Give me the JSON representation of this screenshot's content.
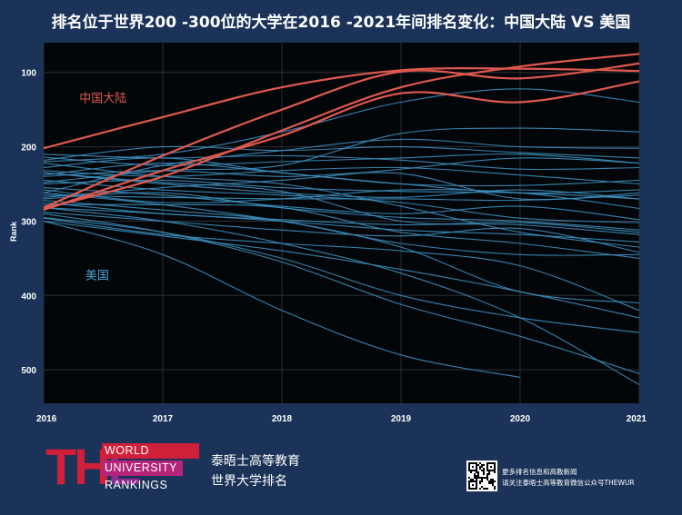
{
  "title": "排名位于世界200 -300位的大学在2016 -2021年间排名变化：中国大陆 VS 美国",
  "footer": {
    "logo_letters": "THE",
    "logo_lines": [
      "WORLD",
      "UNIVERSITY",
      "RANKINGS"
    ],
    "brand_line1": "泰晤士高等教育",
    "brand_line2": "世界大学排名",
    "qr_text_line1": "更多排名信息和高教新闻",
    "qr_text_line2": "请关注泰晤士高等教育微信公众号THEWUR"
  },
  "colors": {
    "background": "#1b3358",
    "plot_background": "#030609",
    "china": "#e0594e",
    "usa": "#3d8fbf"
  },
  "chart_data": {
    "type": "line",
    "ylabel": "Rank",
    "xlabel": "",
    "y_inverted": true,
    "ylim": [
      545,
      60
    ],
    "yticks": [
      100,
      200,
      300,
      400,
      500
    ],
    "x": [
      2016,
      2017,
      2018,
      2019,
      2020,
      2021
    ],
    "grid": true,
    "annotations": [
      {
        "text": "中国大陆",
        "group": "china",
        "x": 2016.3,
        "y": 140
      },
      {
        "text": "美国",
        "group": "usa",
        "x": 2016.35,
        "y": 378
      }
    ],
    "series": [
      {
        "group": "china",
        "values": [
          202,
          160,
          120,
          97,
          95,
          98
        ]
      },
      {
        "group": "china",
        "values": [
          282,
          212,
          150,
          99,
          108,
          88
        ]
      },
      {
        "group": "china",
        "values": [
          285,
          232,
          185,
          128,
          140,
          112
        ]
      },
      {
        "group": "china",
        "values": [
          283,
          240,
          178,
          120,
          92,
          75
        ]
      },
      {
        "group": "usa",
        "values": [
          232,
          240,
          232,
          228,
          238,
          250
        ]
      },
      {
        "group": "usa",
        "values": [
          250,
          245,
          255,
          260,
          262,
          270
        ]
      },
      {
        "group": "usa",
        "values": [
          268,
          255,
          245,
          230,
          215,
          222
        ]
      },
      {
        "group": "usa",
        "values": [
          270,
          262,
          282,
          295,
          300,
          312
        ]
      },
      {
        "group": "usa",
        "values": [
          282,
          290,
          300,
          312,
          318,
          328
        ]
      },
      {
        "group": "usa",
        "values": [
          300,
          320,
          340,
          365,
          395,
          430
        ]
      },
      {
        "group": "usa",
        "values": [
          295,
          315,
          350,
          400,
          430,
          450
        ]
      },
      {
        "group": "usa",
        "values": [
          282,
          300,
          330,
          370,
          430,
          520
        ]
      },
      {
        "group": "usa",
        "values": [
          290,
          315,
          355,
          412,
          455,
          505
        ]
      },
      {
        "group": "usa",
        "values": [
          300,
          345,
          420,
          480,
          510,
          null
        ]
      },
      {
        "group": "usa",
        "values": [
          214,
          225,
          220,
          215,
          210,
          222
        ]
      },
      {
        "group": "usa",
        "values": [
          218,
          200,
          205,
          200,
          208,
          215
        ]
      },
      {
        "group": "usa",
        "values": [
          248,
          232,
          225,
          182,
          175,
          180
        ]
      },
      {
        "group": "usa",
        "values": [
          262,
          225,
          205,
          190,
          200,
          202
        ]
      },
      {
        "group": "usa",
        "values": [
          238,
          222,
          235,
          250,
          252,
          245
        ]
      },
      {
        "group": "usa",
        "values": [
          258,
          275,
          270,
          258,
          262,
          283
        ]
      },
      {
        "group": "usa",
        "values": [
          275,
          290,
          298,
          305,
          302,
          315
        ]
      },
      {
        "group": "usa",
        "values": [
          235,
          250,
          262,
          268,
          258,
          270
        ]
      },
      {
        "group": "usa",
        "values": [
          278,
          278,
          282,
          315,
          330,
          350
        ]
      },
      {
        "group": "usa",
        "values": [
          255,
          265,
          280,
          290,
          280,
          298
        ]
      },
      {
        "group": "usa",
        "values": [
          240,
          232,
          240,
          236,
          270,
          262
        ]
      },
      {
        "group": "usa",
        "values": [
          222,
          240,
          250,
          280,
          315,
          335
        ]
      },
      {
        "group": "usa",
        "values": [
          228,
          215,
          235,
          250,
          262,
          258
        ]
      },
      {
        "group": "usa",
        "values": [
          245,
          258,
          265,
          275,
          296,
          302
        ]
      },
      {
        "group": "usa",
        "values": [
          262,
          278,
          300,
          330,
          345,
          345
        ]
      },
      {
        "group": "usa",
        "values": [
          220,
          210,
          180,
          140,
          122,
          140
        ]
      },
      {
        "group": "usa",
        "values": [
          288,
          300,
          312,
          320,
          310,
          342
        ]
      },
      {
        "group": "usa",
        "values": [
          210,
          215,
          212,
          218,
          230,
          228
        ]
      },
      {
        "group": "usa",
        "values": [
          235,
          248,
          260,
          300,
          305,
          318
        ]
      },
      {
        "group": "usa",
        "values": [
          265,
          268,
          270,
          270,
          272,
          265
        ]
      },
      {
        "group": "usa",
        "values": [
          296,
          318,
          330,
          340,
          360,
          420
        ]
      },
      {
        "group": "usa",
        "values": [
          272,
          285,
          300,
          335,
          395,
          410
        ]
      }
    ]
  }
}
